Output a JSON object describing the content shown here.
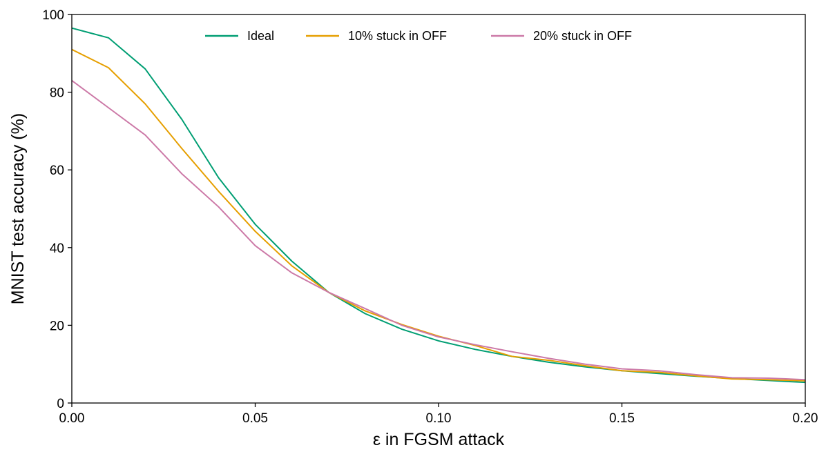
{
  "chart_data": {
    "type": "line",
    "title": "",
    "xlabel": "ε in FGSM attack",
    "ylabel": "MNIST test accuracy (%)",
    "xlim": [
      0.0,
      0.2
    ],
    "ylim": [
      0,
      100
    ],
    "xticks": [
      0.0,
      0.05,
      0.1,
      0.15,
      0.2
    ],
    "xtick_labels": [
      "0.00",
      "0.05",
      "0.10",
      "0.15",
      "0.20"
    ],
    "yticks": [
      0,
      20,
      40,
      60,
      80,
      100
    ],
    "ytick_labels": [
      "0",
      "20",
      "40",
      "60",
      "80",
      "100"
    ],
    "grid": false,
    "legend_position": "top-center",
    "x": [
      0.0,
      0.01,
      0.02,
      0.03,
      0.04,
      0.05,
      0.06,
      0.07,
      0.08,
      0.09,
      0.1,
      0.11,
      0.12,
      0.13,
      0.14,
      0.15,
      0.16,
      0.17,
      0.18,
      0.19,
      0.2
    ],
    "series": [
      {
        "name": "Ideal",
        "color": "#009E73",
        "values": [
          96.5,
          94.0,
          86.0,
          73.0,
          58.0,
          46.0,
          36.5,
          28.5,
          23.0,
          19.0,
          16.0,
          13.8,
          12.0,
          10.5,
          9.3,
          8.3,
          7.6,
          6.9,
          6.3,
          5.8,
          5.3
        ]
      },
      {
        "name": "10% stuck in OFF",
        "color": "#E69F00",
        "values": [
          91.0,
          86.3,
          77.0,
          65.5,
          54.5,
          44.2,
          35.3,
          28.5,
          23.7,
          20.2,
          17.2,
          14.8,
          12.0,
          11.0,
          9.6,
          8.3,
          7.9,
          7.0,
          6.2,
          6.0,
          5.7
        ]
      },
      {
        "name": "20% stuck in OFF",
        "color": "#CC79A7",
        "values": [
          83.0,
          76.0,
          69.0,
          59.0,
          50.5,
          40.5,
          33.5,
          28.5,
          24.3,
          20.0,
          17.0,
          15.0,
          13.2,
          11.5,
          10.0,
          8.8,
          8.3,
          7.3,
          6.5,
          6.4,
          6.0
        ]
      }
    ]
  }
}
